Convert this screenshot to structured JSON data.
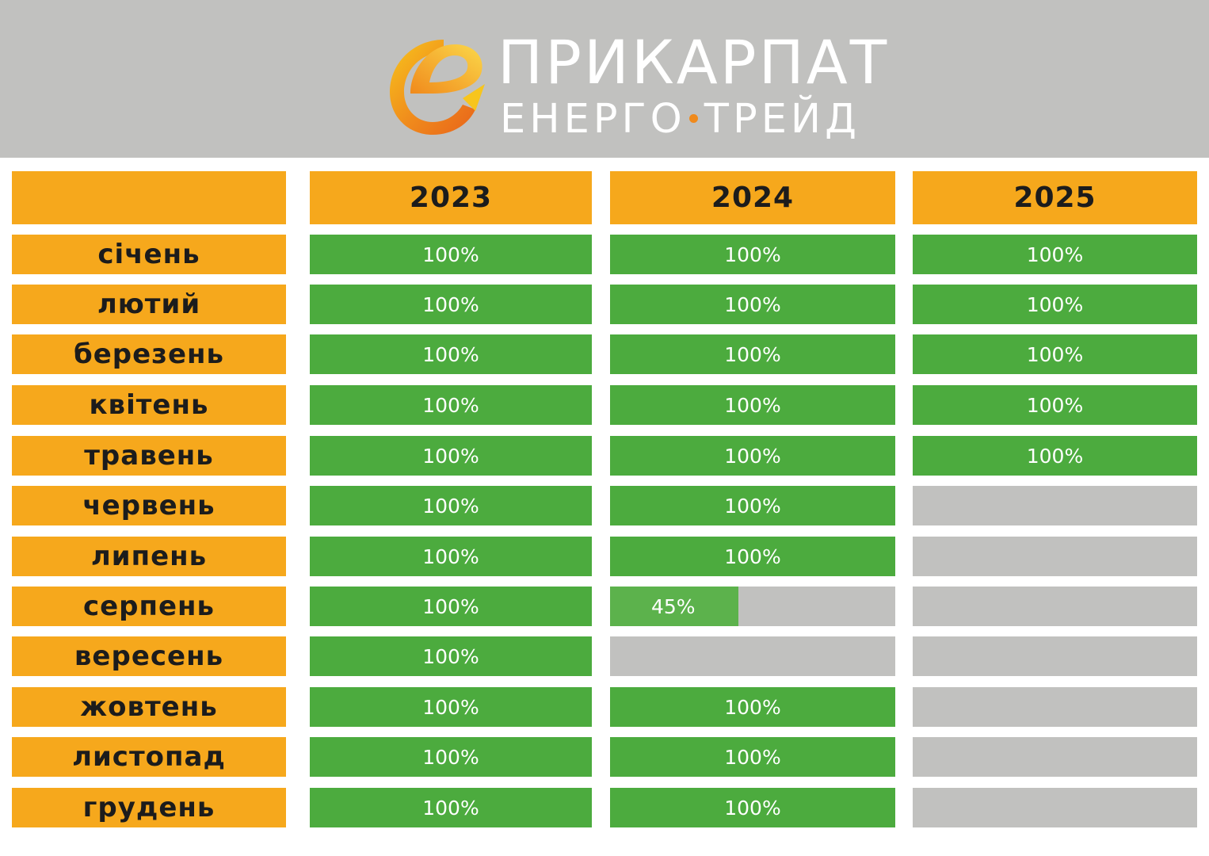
{
  "brand": {
    "name_line1": "ПРИКАРПАТ",
    "name_line2_a": "ЕНЕРГО",
    "name_line2_b": "ТРЕЙД",
    "logo_icon": "e-letter-logo-icon",
    "colors": {
      "header_bg": "#c1c1bf",
      "orange": "#f6a81c",
      "green": "#4cab3e",
      "empty": "#c1c1bf",
      "logo_gradient": [
        "#f7c51d",
        "#f08a1c",
        "#e8631a"
      ]
    }
  },
  "chart_data": {
    "type": "table",
    "categories": [
      "січень",
      "лютий",
      "березень",
      "квітень",
      "травень",
      "червень",
      "липень",
      "серпень",
      "вересень",
      "жовтень",
      "листопад",
      "грудень"
    ],
    "series": [
      {
        "name": "2023",
        "values": [
          100,
          100,
          100,
          100,
          100,
          100,
          100,
          100,
          100,
          100,
          100,
          100
        ],
        "labels": [
          "100%",
          "100%",
          "100%",
          "100%",
          "100%",
          "100%",
          "100%",
          "100%",
          "100%",
          "100%",
          "100%",
          "100%"
        ]
      },
      {
        "name": "2024",
        "values": [
          100,
          100,
          100,
          100,
          100,
          100,
          100,
          45,
          0,
          100,
          100,
          100
        ],
        "labels": [
          "100%",
          "100%",
          "100%",
          "100%",
          "100%",
          "100%",
          "100%",
          "45%",
          "",
          "100%",
          "100%",
          "100%"
        ]
      },
      {
        "name": "2025",
        "values": [
          100,
          100,
          100,
          100,
          100,
          0,
          0,
          0,
          0,
          0,
          0,
          0
        ],
        "labels": [
          "100%",
          "100%",
          "100%",
          "100%",
          "100%",
          "",
          "",
          "",
          "",
          "",
          "",
          ""
        ]
      }
    ],
    "unit": "%",
    "ylim": [
      0,
      100
    ]
  }
}
